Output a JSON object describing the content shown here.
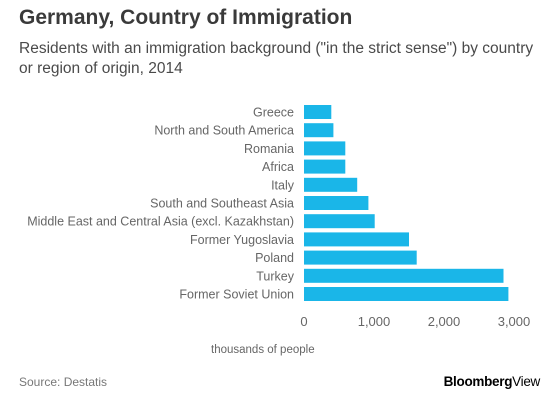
{
  "header": {
    "title": "Germany, Country of Immigration",
    "subtitle": "Residents with an immigration background (\"in the strict sense\") by country or region of origin, 2014"
  },
  "footer": {
    "source": "Source: Destatis",
    "brand_bold": "Bloomberg",
    "brand_regular": "View"
  },
  "colors": {
    "bar": "#1ab6e8",
    "text": "#666666"
  },
  "chart_data": {
    "type": "bar",
    "orientation": "horizontal",
    "categories": [
      "Greece",
      "North and South America",
      "Romania",
      "Africa",
      "Italy",
      "South and Southeast Asia",
      "Middle East and Central Asia (excl. Kazakhstan)",
      "Former Yugoslavia",
      "Poland",
      "Turkey",
      "Former Soviet Union"
    ],
    "values": [
      390,
      420,
      590,
      590,
      760,
      920,
      1010,
      1500,
      1610,
      2850,
      2920
    ],
    "title": "Germany, Country of Immigration",
    "xlabel": "thousands of people",
    "ylabel": "",
    "xlim": [
      0,
      3000
    ],
    "xticks": [
      0,
      1000,
      2000,
      3000
    ],
    "xtick_labels": [
      "0",
      "1,000",
      "2,000",
      "3,000"
    ],
    "grid": false,
    "legend": "none"
  }
}
